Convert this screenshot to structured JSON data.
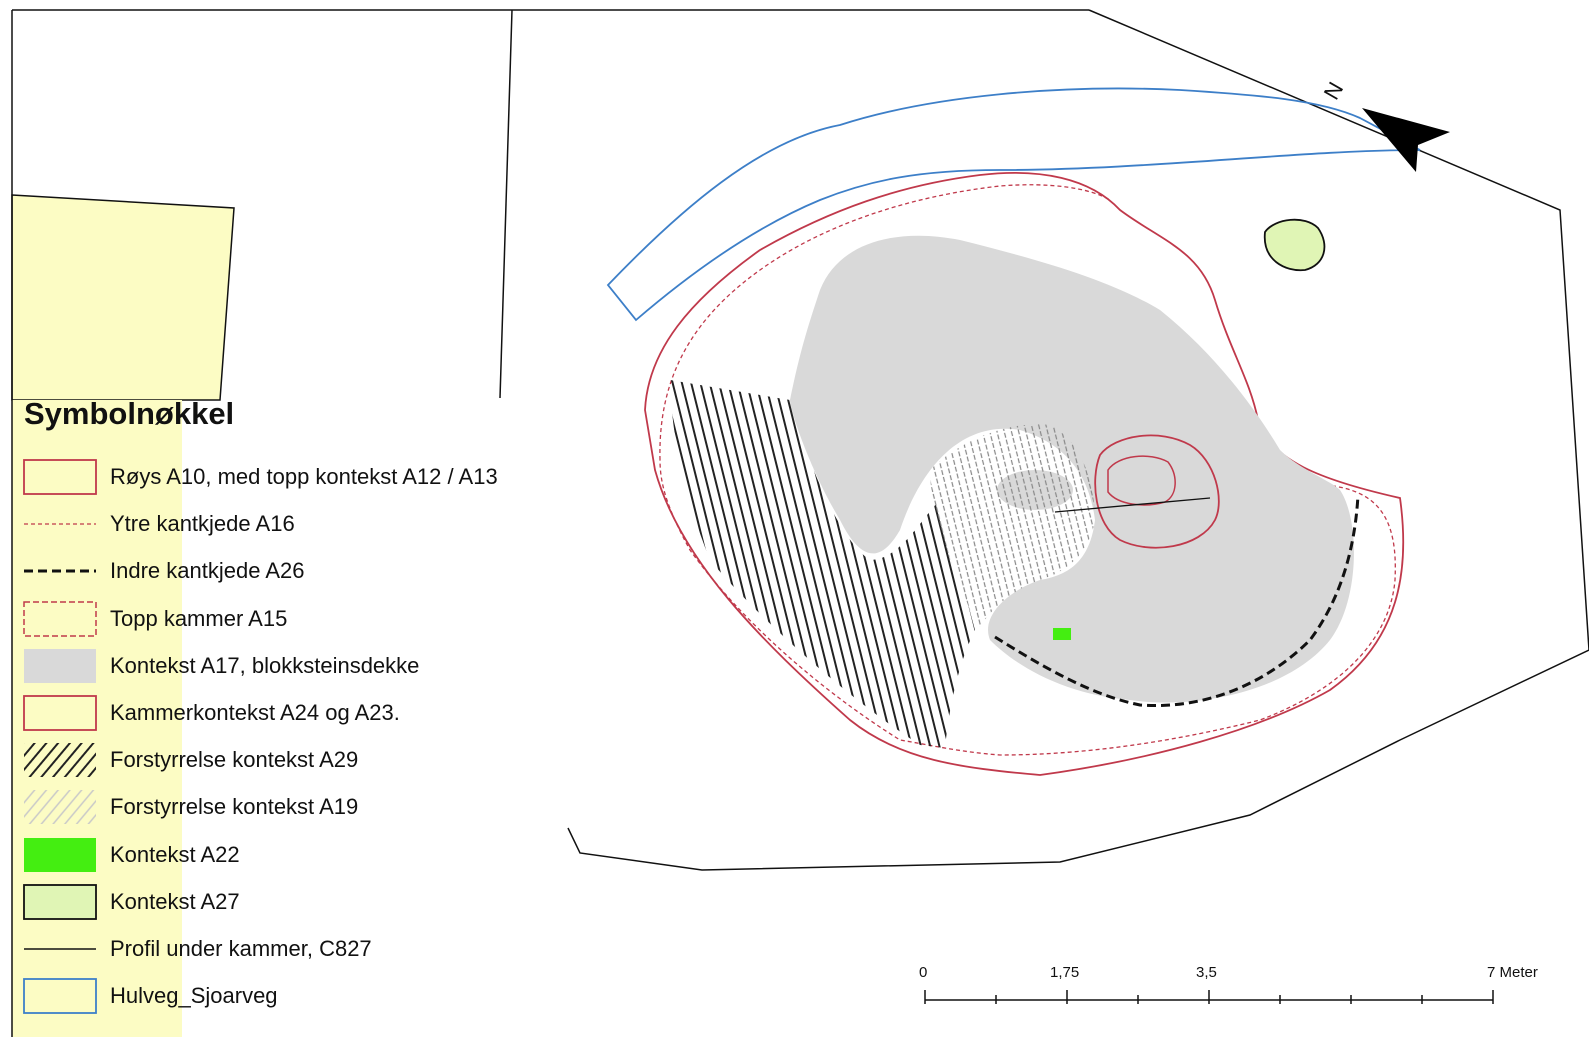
{
  "legend": {
    "title": "Symbolnøkkel",
    "items": [
      {
        "name": "legend-item-roys-a10",
        "label": "Røys A10, med topp kontekst A12 / A13",
        "symbol": "box-outline",
        "color": "#c0394b"
      },
      {
        "name": "legend-item-ytre-kantkjede",
        "label": "Ytre kantkjede A16",
        "symbol": "dotted-line",
        "color": "#c0394b"
      },
      {
        "name": "legend-item-indre-kantkjede",
        "label": "Indre kantkjede A26",
        "symbol": "dashed-line",
        "color": "#111111"
      },
      {
        "name": "legend-item-topp-kammer",
        "label": "Topp kammer A15",
        "symbol": "box-dashed",
        "color": "#c0394b"
      },
      {
        "name": "legend-item-kontekst-a17",
        "label": "Kontekst A17, blokksteinsdekke",
        "symbol": "box-fill",
        "color": "#d9d9d9"
      },
      {
        "name": "legend-item-kammerkontekst",
        "label": "Kammerkontekst A24 og A23.",
        "symbol": "box-outline",
        "color": "#c0394b"
      },
      {
        "name": "legend-item-forstyrrelse-a29",
        "label": "Forstyrrelse kontekst A29",
        "symbol": "hatch-dark",
        "color": "#222222"
      },
      {
        "name": "legend-item-forstyrrelse-a19",
        "label": "Forstyrrelse kontekst A19",
        "symbol": "hatch-light",
        "color": "#cccccc"
      },
      {
        "name": "legend-item-kontekst-a22",
        "label": "Kontekst A22",
        "symbol": "box-fill",
        "color": "#44ee11"
      },
      {
        "name": "legend-item-kontekst-a27",
        "label": "Kontekst A27",
        "symbol": "box-fill-outline",
        "color": "#e0f5b5"
      },
      {
        "name": "legend-item-profil",
        "label": "Profil under kammer, C827",
        "symbol": "solid-line",
        "color": "#111111"
      },
      {
        "name": "legend-item-hulveg",
        "label": "Hulveg_Sjoarveg",
        "symbol": "box-outline",
        "color": "#3d7fc8"
      }
    ]
  },
  "scale_bar": {
    "labels": [
      "0",
      "1,75",
      "3,5",
      "7 Meter"
    ]
  },
  "north_arrow": {
    "label": "N",
    "icon": "north-arrow-icon"
  },
  "colors": {
    "red": "#c0394b",
    "blue": "#3d7fc8",
    "gray_fill": "#d9d9d9",
    "yellow_parcel": "#fcfcc4",
    "green_bright": "#44ee11",
    "green_light": "#e0f5b5"
  }
}
